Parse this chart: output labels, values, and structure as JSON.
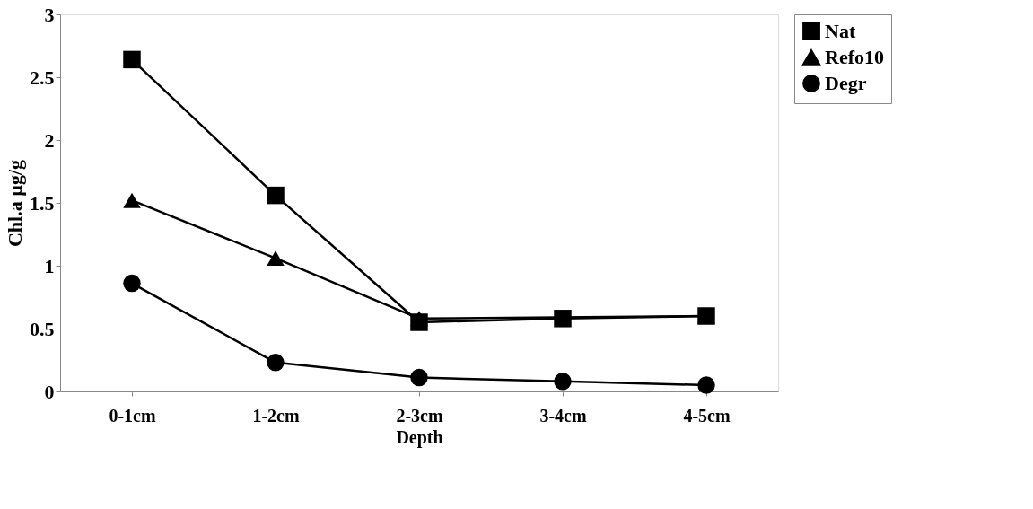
{
  "chart_data": {
    "type": "line",
    "xlabel": "Depth",
    "ylabel": "Chl.a  µg/g",
    "categories": [
      "0-1cm",
      "1-2cm",
      "2-3cm",
      "3-4cm",
      "4-5cm"
    ],
    "series": [
      {
        "name": "Nat",
        "color": "#000000",
        "marker": "square",
        "values": [
          2.64,
          1.56,
          0.55,
          0.58,
          0.6
        ]
      },
      {
        "name": "Refo10",
        "color": "#000000",
        "marker": "triangle",
        "values": [
          1.52,
          1.06,
          0.58,
          null,
          0.6
        ]
      },
      {
        "name": "Degr",
        "color": "#000000",
        "marker": "circle",
        "values": [
          0.86,
          0.23,
          0.11,
          0.08,
          0.05
        ]
      }
    ],
    "ylim": [
      0,
      3
    ],
    "yticks": [
      0,
      0.5,
      1,
      1.5,
      2,
      2.5,
      3
    ],
    "grid": false,
    "legend": "top right",
    "line_style": "solid"
  }
}
